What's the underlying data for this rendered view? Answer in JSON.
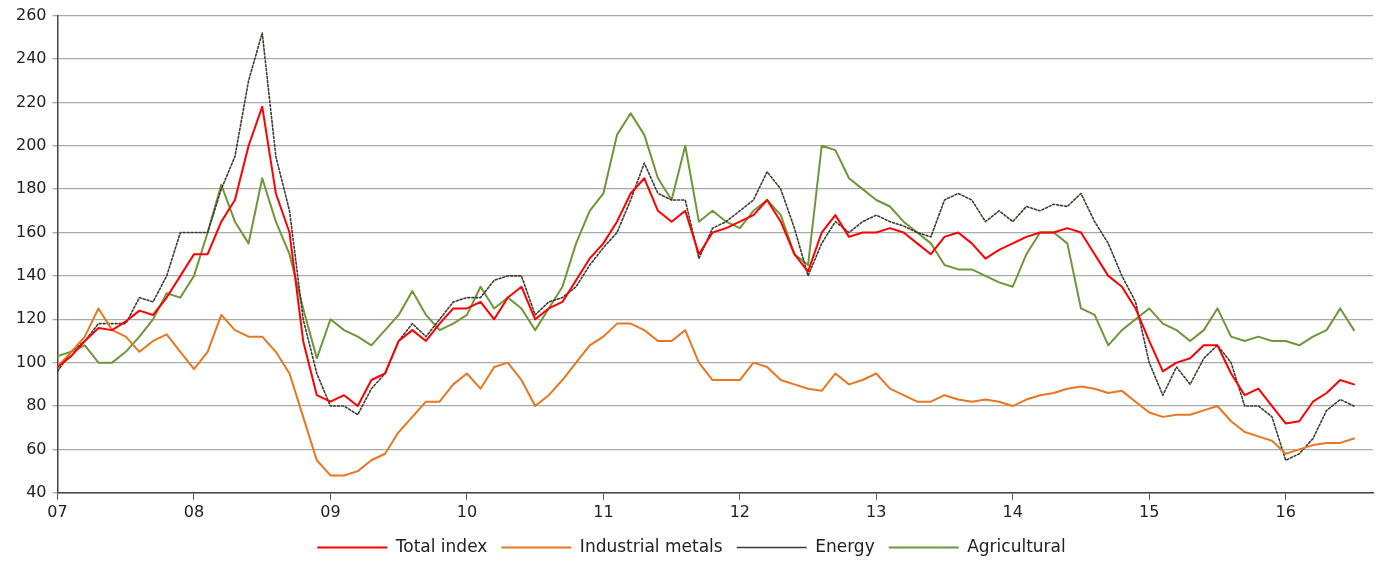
{
  "chart_data": {
    "type": "line",
    "x": [
      2007.0,
      2007.1,
      2007.2,
      2007.3,
      2007.4,
      2007.5,
      2007.6,
      2007.7,
      2007.8,
      2007.9,
      2008.0,
      2008.1,
      2008.2,
      2008.3,
      2008.4,
      2008.5,
      2008.6,
      2008.7,
      2008.8,
      2008.9,
      2009.0,
      2009.1,
      2009.2,
      2009.3,
      2009.4,
      2009.5,
      2009.6,
      2009.7,
      2009.8,
      2009.9,
      2010.0,
      2010.1,
      2010.2,
      2010.3,
      2010.4,
      2010.5,
      2010.6,
      2010.7,
      2010.8,
      2010.9,
      2011.0,
      2011.1,
      2011.2,
      2011.3,
      2011.4,
      2011.5,
      2011.6,
      2011.7,
      2011.8,
      2011.9,
      2012.0,
      2012.1,
      2012.2,
      2012.3,
      2012.4,
      2012.5,
      2012.6,
      2012.7,
      2012.8,
      2012.9,
      2013.0,
      2013.1,
      2013.2,
      2013.3,
      2013.4,
      2013.5,
      2013.6,
      2013.7,
      2013.8,
      2013.9,
      2014.0,
      2014.1,
      2014.2,
      2014.3,
      2014.4,
      2014.5,
      2014.6,
      2014.7,
      2014.8,
      2014.9,
      2015.0,
      2015.1,
      2015.2,
      2015.3,
      2015.4,
      2015.5,
      2015.6,
      2015.7,
      2015.8,
      2015.9,
      2016.0,
      2016.1,
      2016.2,
      2016.3,
      2016.4,
      2016.5
    ],
    "series": [
      {
        "name": "Total index",
        "color": "#ff0000",
        "values": [
          98,
          103,
          110,
          116,
          115,
          119,
          124,
          122,
          130,
          140,
          150,
          150,
          165,
          175,
          200,
          218,
          178,
          160,
          110,
          85,
          82,
          85,
          80,
          92,
          95,
          110,
          115,
          110,
          118,
          125,
          125,
          128,
          120,
          130,
          135,
          120,
          125,
          128,
          138,
          148,
          155,
          165,
          178,
          185,
          170,
          165,
          170,
          150,
          160,
          162,
          165,
          168,
          175,
          165,
          150,
          142,
          160,
          168,
          158,
          160,
          160,
          162,
          160,
          155,
          150,
          158,
          160,
          155,
          148,
          152,
          155,
          158,
          160,
          160,
          162,
          160,
          150,
          140,
          135,
          125,
          110,
          96,
          100,
          102,
          108,
          108,
          95,
          85,
          88,
          80,
          72,
          73,
          82,
          86,
          92,
          90
        ]
      },
      {
        "name": "Industrial metals",
        "color": "#e87722",
        "values": [
          98,
          105,
          112,
          125,
          115,
          112,
          105,
          110,
          113,
          105,
          97,
          105,
          122,
          115,
          112,
          112,
          105,
          95,
          75,
          55,
          48,
          48,
          50,
          55,
          58,
          68,
          75,
          82,
          82,
          90,
          95,
          88,
          98,
          100,
          92,
          80,
          85,
          92,
          100,
          108,
          112,
          118,
          118,
          115,
          110,
          110,
          115,
          100,
          92,
          92,
          92,
          100,
          98,
          92,
          90,
          88,
          87,
          95,
          90,
          92,
          95,
          88,
          85,
          82,
          82,
          85,
          83,
          82,
          83,
          82,
          80,
          83,
          85,
          86,
          88,
          89,
          88,
          86,
          87,
          82,
          77,
          75,
          76,
          76,
          78,
          80,
          73,
          68,
          66,
          64,
          58,
          60,
          62,
          63,
          63,
          65
        ]
      },
      {
        "name": "Energy",
        "color": "#3c3c32",
        "line_style": "dotted",
        "values": [
          96,
          105,
          110,
          118,
          118,
          118,
          130,
          128,
          140,
          160,
          160,
          160,
          180,
          195,
          230,
          252,
          195,
          170,
          120,
          95,
          80,
          80,
          76,
          88,
          95,
          110,
          118,
          112,
          120,
          128,
          130,
          130,
          138,
          140,
          140,
          122,
          128,
          130,
          135,
          145,
          153,
          160,
          175,
          192,
          178,
          175,
          175,
          148,
          162,
          165,
          170,
          175,
          188,
          180,
          162,
          140,
          155,
          165,
          160,
          165,
          168,
          165,
          163,
          160,
          158,
          175,
          178,
          175,
          165,
          170,
          165,
          172,
          170,
          173,
          172,
          178,
          165,
          155,
          140,
          128,
          100,
          85,
          98,
          90,
          102,
          108,
          100,
          80,
          80,
          75,
          55,
          58,
          65,
          78,
          83,
          80
        ]
      },
      {
        "name": "Agricultural",
        "color": "#6f973a",
        "values": [
          103,
          105,
          108,
          100,
          100,
          105,
          112,
          120,
          132,
          130,
          140,
          160,
          182,
          165,
          155,
          185,
          165,
          150,
          125,
          102,
          120,
          115,
          112,
          108,
          115,
          122,
          133,
          122,
          115,
          118,
          122,
          135,
          125,
          130,
          125,
          115,
          125,
          135,
          155,
          170,
          178,
          205,
          215,
          205,
          185,
          175,
          200,
          165,
          170,
          165,
          162,
          170,
          175,
          168,
          150,
          145,
          200,
          198,
          185,
          180,
          175,
          172,
          165,
          160,
          155,
          145,
          143,
          143,
          140,
          137,
          135,
          150,
          160,
          160,
          155,
          125,
          122,
          108,
          115,
          120,
          125,
          118,
          115,
          110,
          115,
          125,
          112,
          110,
          112,
          110,
          110,
          108,
          112,
          115,
          125,
          115
        ]
      }
    ],
    "xlim": [
      2007,
      2016.64
    ],
    "xticks": [
      {
        "value": 2007,
        "label": "07"
      },
      {
        "value": 2008,
        "label": "08"
      },
      {
        "value": 2009,
        "label": "09"
      },
      {
        "value": 2010,
        "label": "10"
      },
      {
        "value": 2011,
        "label": "11"
      },
      {
        "value": 2012,
        "label": "12"
      },
      {
        "value": 2013,
        "label": "13"
      },
      {
        "value": 2014,
        "label": "14"
      },
      {
        "value": 2015,
        "label": "15"
      },
      {
        "value": 2016,
        "label": "16"
      }
    ],
    "ylim": [
      40,
      260
    ],
    "yticks": [
      40,
      60,
      80,
      100,
      120,
      140,
      160,
      180,
      200,
      220,
      240,
      260
    ],
    "grid": "y",
    "legend": "bottom",
    "marker": "none",
    "line_style": "solid"
  }
}
